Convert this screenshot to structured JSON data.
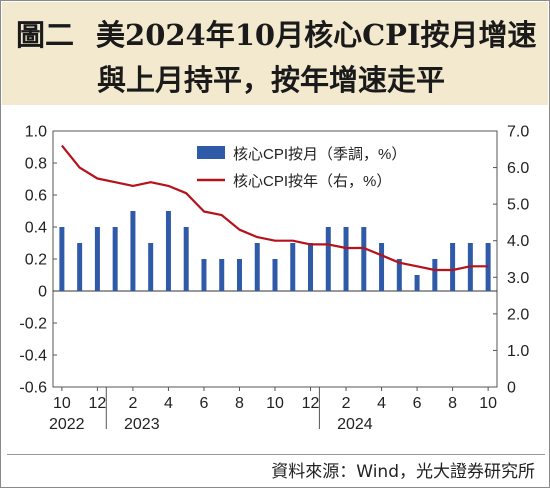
{
  "header": {
    "figure_label": "圖二",
    "title_line1": "美2024年10月核心CPI按月增速",
    "title_line2": "與上月持平，按年增速走平"
  },
  "source": "資料來源：Wind，光大證券研究所",
  "colors": {
    "bar": "#2f5aa8",
    "line": "#b5121b",
    "header_bg": "#f3e9cf"
  },
  "chart_data": {
    "type": "bar+line",
    "x": [
      "2022-10",
      "2022-11",
      "2022-12",
      "2023-01",
      "2023-02",
      "2023-03",
      "2023-04",
      "2023-05",
      "2023-06",
      "2023-07",
      "2023-08",
      "2023-09",
      "2023-10",
      "2023-11",
      "2023-12",
      "2024-01",
      "2024-02",
      "2024-03",
      "2024-04",
      "2024-05",
      "2024-06",
      "2024-07",
      "2024-08",
      "2024-09",
      "2024-10"
    ],
    "x_tick_labels": [
      "10",
      "12",
      "2",
      "4",
      "6",
      "8",
      "10",
      "12",
      "2",
      "4",
      "6",
      "8",
      "10"
    ],
    "year_labels": [
      "2022",
      "2023",
      "2024"
    ],
    "series": [
      {
        "name": "核心CPI按月（季調，%）",
        "type": "bar",
        "axis": "left",
        "values": [
          0.4,
          0.3,
          0.4,
          0.4,
          0.5,
          0.3,
          0.5,
          0.4,
          0.2,
          0.2,
          0.2,
          0.3,
          0.2,
          0.3,
          0.3,
          0.4,
          0.4,
          0.4,
          0.3,
          0.2,
          0.1,
          0.2,
          0.3,
          0.3,
          0.3
        ]
      },
      {
        "name": "核心CPI按年（右，%）",
        "type": "line",
        "axis": "right",
        "values": [
          6.6,
          6.0,
          5.7,
          5.6,
          5.5,
          5.6,
          5.5,
          5.3,
          4.8,
          4.7,
          4.3,
          4.1,
          4.0,
          4.0,
          3.9,
          3.9,
          3.8,
          3.8,
          3.6,
          3.4,
          3.3,
          3.2,
          3.2,
          3.3,
          3.3
        ]
      }
    ],
    "left_axis": {
      "ylim": [
        -0.6,
        1.0
      ],
      "ticks": [
        "1.0",
        "0.8",
        "0.6",
        "0.4",
        "0.2",
        "0",
        "-0.2",
        "-0.4",
        "-0.6"
      ]
    },
    "right_axis": {
      "ylim": [
        0,
        7.0
      ],
      "ticks": [
        "7.0",
        "6.0",
        "5.0",
        "4.0",
        "3.0",
        "2.0",
        "1.0",
        "0"
      ]
    },
    "legend": {
      "placement": "top-center"
    }
  }
}
